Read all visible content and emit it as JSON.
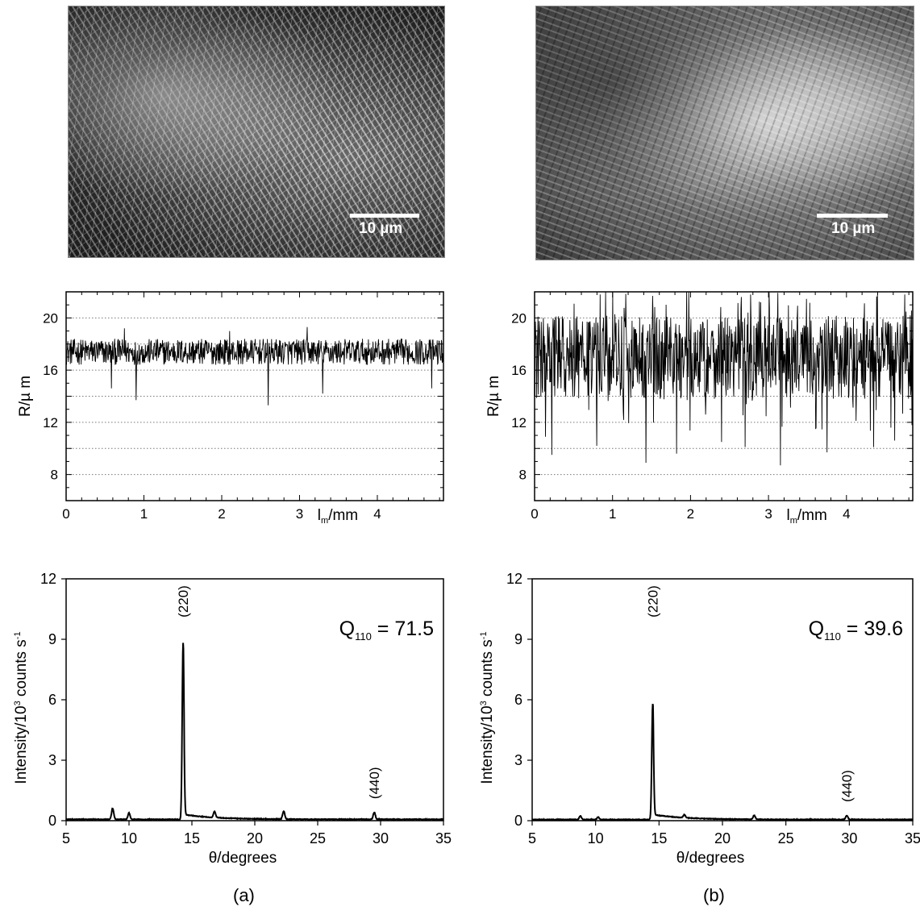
{
  "images": [
    {
      "scale_label": "10 µm"
    },
    {
      "scale_label": "10 µm"
    }
  ],
  "panel_labels": [
    "(a)",
    "(b)"
  ],
  "chart_data": [
    {
      "type": "line",
      "panel": "a",
      "xlabel_main": "l",
      "xlabel_sub": "m",
      "xlabel_unit": "/mm",
      "ylabel": "R/µ m",
      "xlim": [
        0,
        4.85
      ],
      "ylim": [
        6,
        22
      ],
      "xticks": [
        0,
        1,
        2,
        3,
        4
      ],
      "yticks": [
        8,
        12,
        16,
        20
      ],
      "grid_y": [
        8,
        10,
        12,
        14,
        16,
        18,
        20
      ],
      "grid": "horizontal dotted",
      "mean": 17.4,
      "amplitude": 1.0,
      "dips": [
        [
          0.9,
          13.7
        ],
        [
          2.6,
          13.3
        ],
        [
          3.3,
          14.2
        ],
        [
          0.58,
          14.6
        ],
        [
          4.7,
          14.6
        ]
      ],
      "spikes": [
        [
          3.1,
          19.3
        ],
        [
          0.75,
          19.2
        ],
        [
          2.1,
          19.0
        ]
      ]
    },
    {
      "type": "line",
      "panel": "b",
      "xlabel_main": "l",
      "xlabel_sub": "m",
      "xlabel_unit": "/mm",
      "ylabel": "R/µ m",
      "xlim": [
        0,
        4.85
      ],
      "ylim": [
        6,
        22
      ],
      "xticks": [
        0,
        1,
        2,
        3,
        4
      ],
      "yticks": [
        8,
        12,
        16,
        20
      ],
      "grid_y": [
        8,
        10,
        12,
        14,
        16,
        18,
        20
      ],
      "grid": "horizontal dotted",
      "mean": 17.0,
      "amplitude": 3.2,
      "dips": [
        [
          0.14,
          10.9
        ],
        [
          0.22,
          9.5
        ],
        [
          0.8,
          10.2
        ],
        [
          1.0,
          9.4
        ],
        [
          1.43,
          8.9
        ],
        [
          1.82,
          9.6
        ],
        [
          2.4,
          10.5
        ],
        [
          2.7,
          10.1
        ],
        [
          3.15,
          8.7
        ],
        [
          3.75,
          9.7
        ],
        [
          4.35,
          10.1
        ],
        [
          4.62,
          10.6
        ]
      ],
      "spikes": [
        [
          0.84,
          21.8
        ],
        [
          1.0,
          22.0
        ],
        [
          1.95,
          22.0
        ],
        [
          1.98,
          22.0
        ],
        [
          4.75,
          21.8
        ],
        [
          2.9,
          21.2
        ]
      ]
    },
    {
      "type": "line",
      "panel": "a",
      "xlabel": "θ/degrees",
      "ylabel_main": "Intensity/10",
      "ylabel_sup": "3",
      "ylabel_rest": " counts s",
      "ylabel_exp": "-1",
      "xlim": [
        5,
        35
      ],
      "ylim": [
        0,
        12
      ],
      "xticks": [
        5,
        10,
        15,
        20,
        25,
        30,
        35
      ],
      "yticks": [
        0,
        3,
        6,
        9,
        12
      ],
      "annotation_main": "Q",
      "annotation_sub": "110",
      "annotation_value": " = 71.5",
      "peaks": [
        {
          "x": 8.7,
          "y": 0.55
        },
        {
          "x": 10.0,
          "y": 0.32
        },
        {
          "x": 14.3,
          "y": 8.75,
          "label": "(220)"
        },
        {
          "x": 16.8,
          "y": 0.3
        },
        {
          "x": 22.3,
          "y": 0.4
        },
        {
          "x": 29.5,
          "y": 0.35,
          "label": "(440)"
        }
      ],
      "baseline": 0.05
    },
    {
      "type": "line",
      "panel": "b",
      "xlabel": "θ/degrees",
      "ylabel_main": "Intensity/10",
      "ylabel_sup": "3",
      "ylabel_rest": " counts s",
      "ylabel_exp": "-1",
      "xlim": [
        5,
        35
      ],
      "ylim": [
        0,
        12
      ],
      "xticks": [
        5,
        10,
        15,
        20,
        25,
        30,
        35
      ],
      "yticks": [
        0,
        3,
        6,
        9,
        12
      ],
      "annotation_main": "Q",
      "annotation_sub": "110",
      "annotation_value": " = 39.6",
      "peaks": [
        {
          "x": 8.8,
          "y": 0.18
        },
        {
          "x": 10.2,
          "y": 0.12
        },
        {
          "x": 14.5,
          "y": 5.75,
          "label": "(220)"
        },
        {
          "x": 17.0,
          "y": 0.15
        },
        {
          "x": 22.5,
          "y": 0.2
        },
        {
          "x": 29.8,
          "y": 0.2,
          "label": "(440)"
        }
      ],
      "baseline": 0.04
    }
  ]
}
